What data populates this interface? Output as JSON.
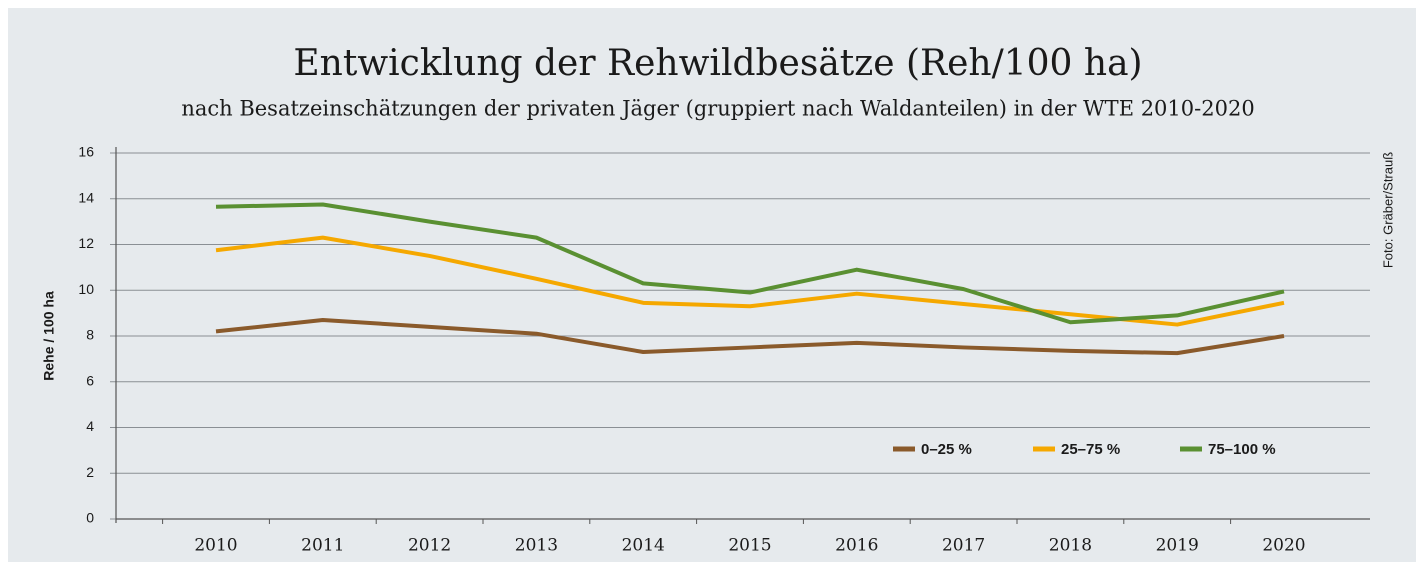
{
  "chart_data": {
    "type": "line",
    "title": "Entwicklung der Rehwildbesätze (Reh/100 ha)",
    "subtitle": "nach Besatzeinschätzungen der privaten Jäger (gruppiert nach Waldanteilen) in der WTE 2010-2020",
    "y_label": "Rehe / 100 ha",
    "credit": "Foto: Gräber/Strauß",
    "categories": [
      "2010",
      "2011",
      "2012",
      "2013",
      "2014",
      "2015",
      "2016",
      "2017",
      "2018",
      "2019",
      "2020"
    ],
    "series": [
      {
        "name": "0–25 %",
        "color": "#8a5a2b",
        "values": [
          8.2,
          8.7,
          8.4,
          8.1,
          7.3,
          7.5,
          7.7,
          7.5,
          7.35,
          7.25,
          8.0
        ]
      },
      {
        "name": "25–75 %",
        "color": "#f5a800",
        "values": [
          11.75,
          12.3,
          11.5,
          10.5,
          9.45,
          9.3,
          9.85,
          9.4,
          8.95,
          8.5,
          9.45
        ]
      },
      {
        "name": "75–100 %",
        "color": "#5a9032",
        "values": [
          13.65,
          13.75,
          13.0,
          12.3,
          10.3,
          9.9,
          10.9,
          10.05,
          8.6,
          8.9,
          9.95
        ]
      }
    ],
    "ylim": [
      0,
      16
    ],
    "yticks": [
      0,
      2,
      4,
      6,
      8,
      10,
      12,
      14,
      16
    ],
    "grid": true,
    "legend": "lower right"
  }
}
